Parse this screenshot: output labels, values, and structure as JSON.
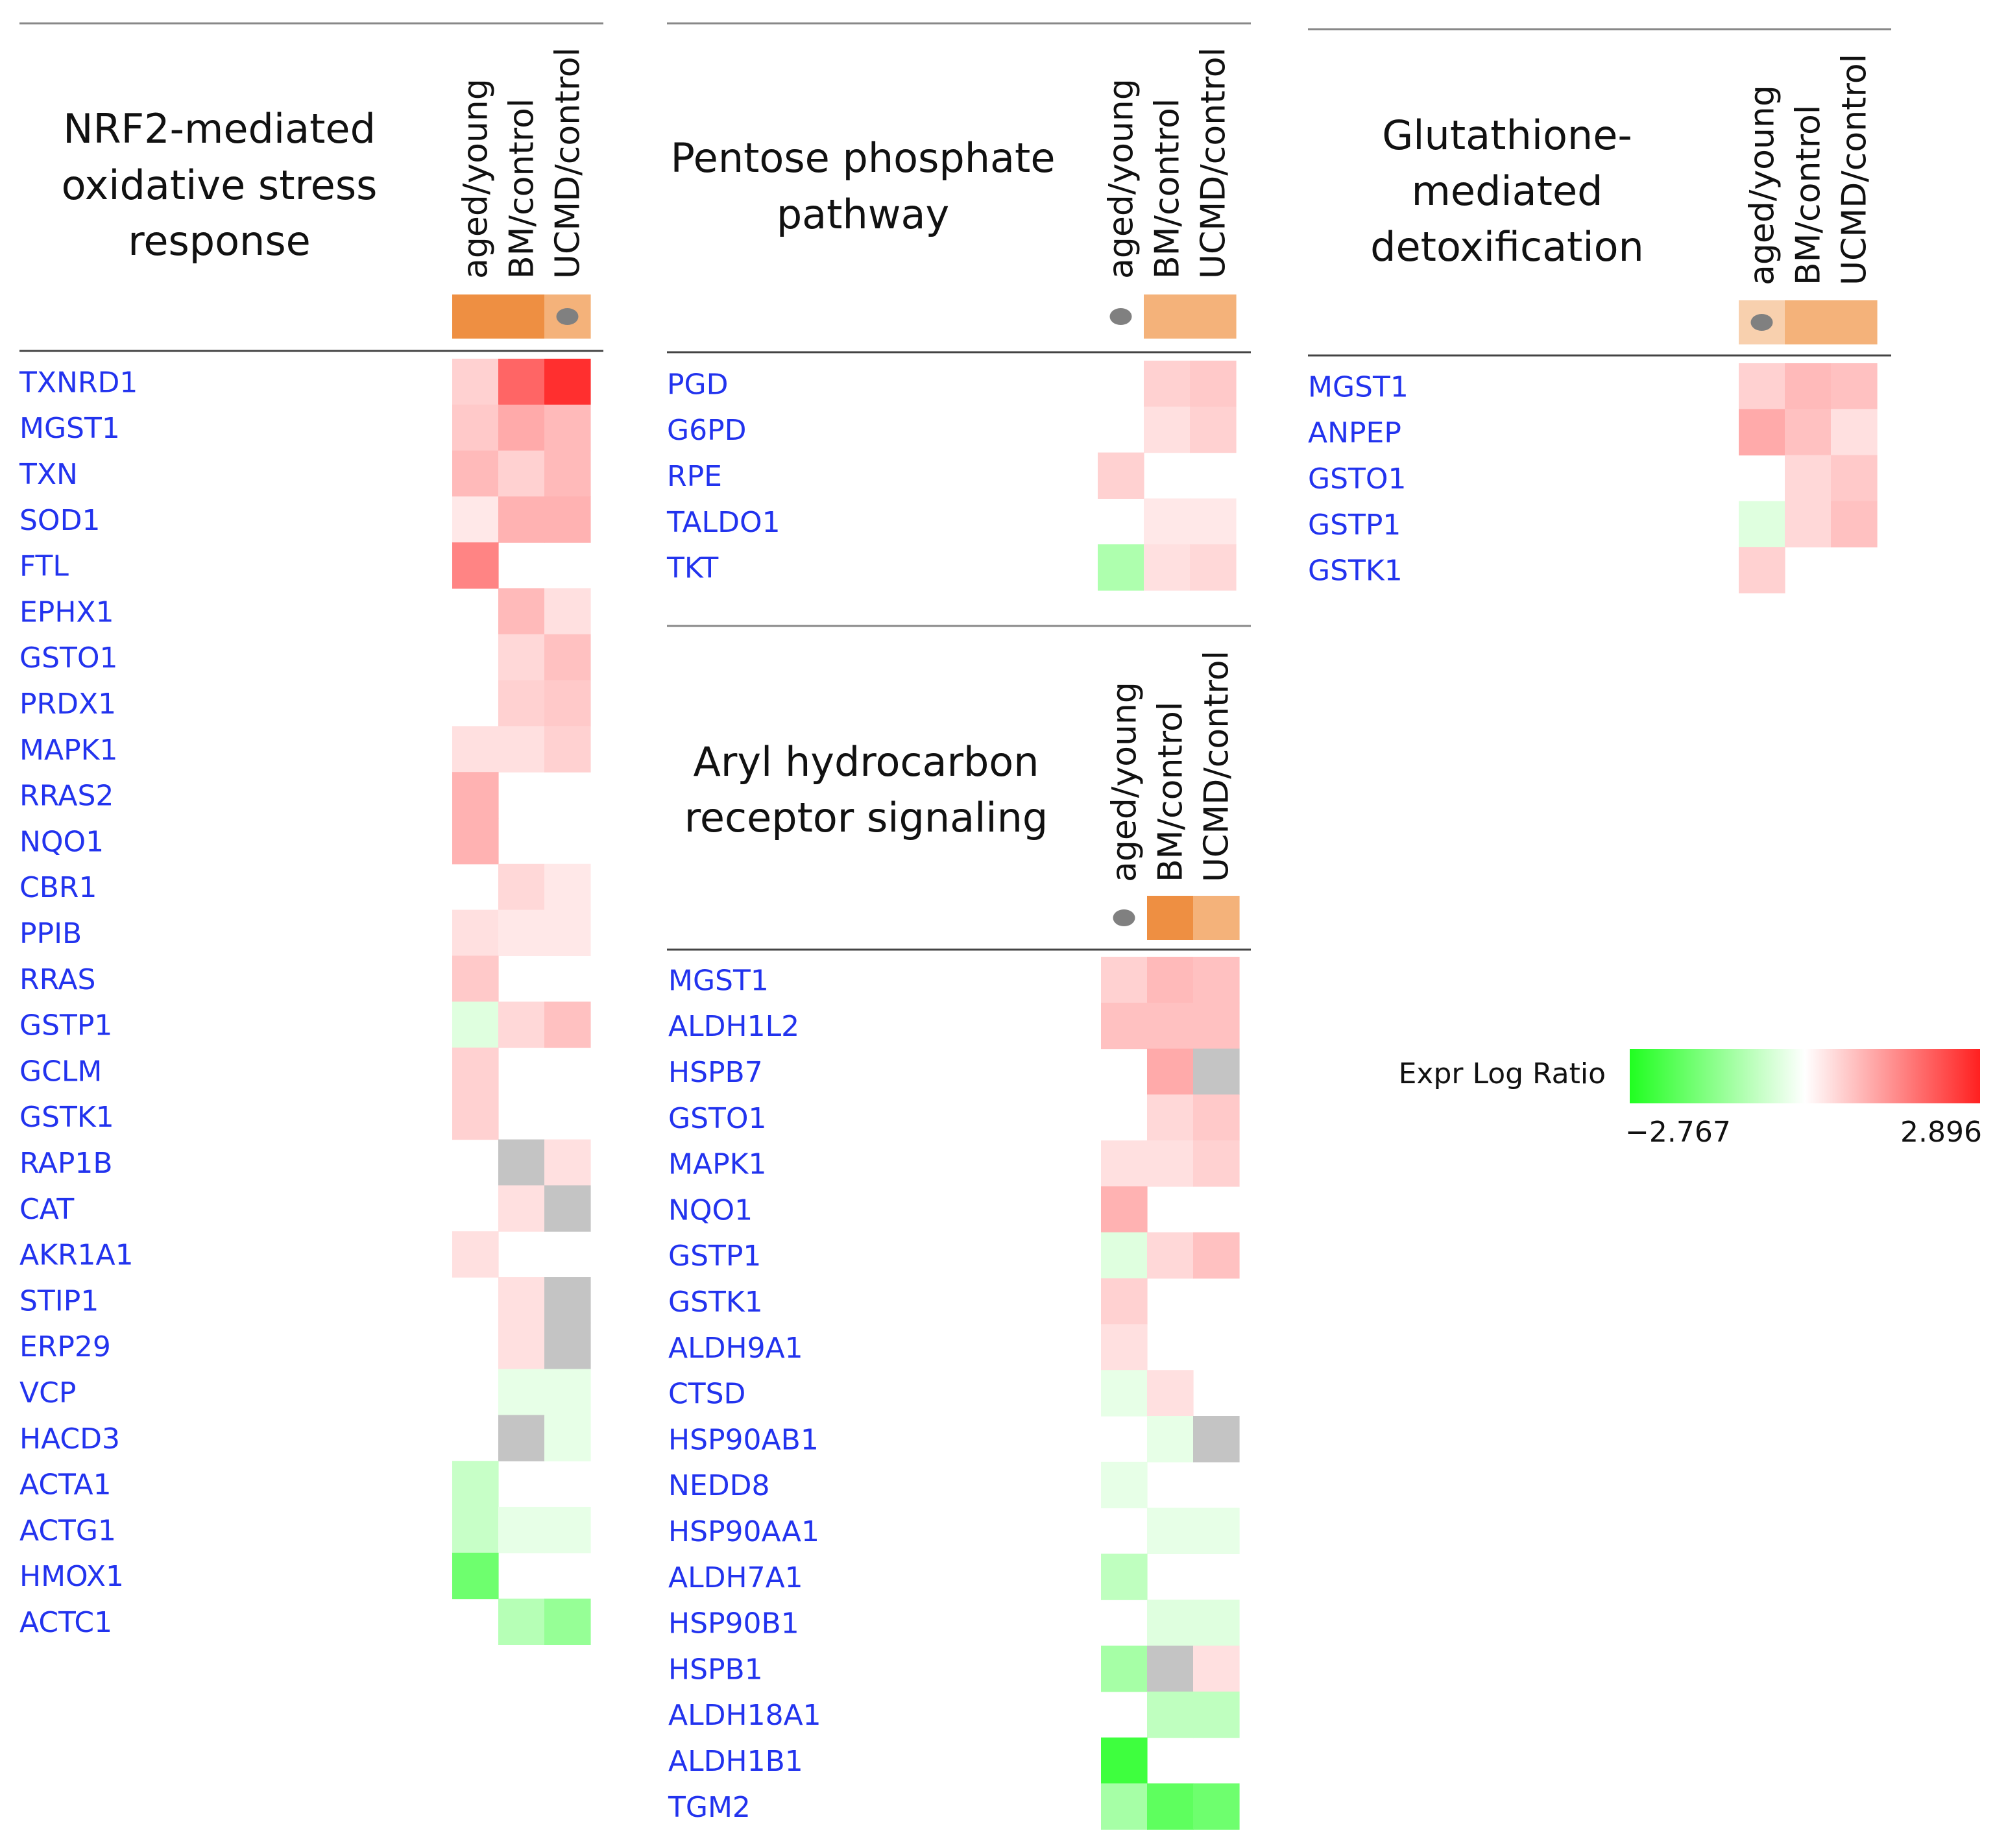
{
  "chart_data": {
    "type": "heatmap",
    "columns": [
      "aged/young",
      "BM/control",
      "UCMD/control"
    ],
    "legend": {
      "title": "Expr Log Ratio",
      "min": -2.767,
      "max": 2.896,
      "min_label": "−2.767",
      "max_label": "2.896"
    },
    "colors": {
      "high": "#ff2020",
      "low": "#20ff20",
      "mid": "#ffffff",
      "na": "#c4c4c4",
      "bar_dark": "#ee8f42",
      "bar_light": "#f4b27a",
      "bar_pale": "#f8d0ae",
      "dot": "#808080",
      "gene_text": "#2233ee",
      "rule": "#888888"
    },
    "panels": [
      {
        "title_lines": [
          "NRF2-mediated",
          "oxidative stress",
          "response"
        ],
        "significance": [
          "dark",
          "dark",
          "light-dot"
        ],
        "rows": [
          {
            "gene": "TXNRD1",
            "values": [
              0.6,
              2.0,
              2.7
            ]
          },
          {
            "gene": "MGST1",
            "values": [
              0.7,
              1.1,
              0.9
            ]
          },
          {
            "gene": "TXN",
            "values": [
              0.9,
              0.6,
              0.9
            ]
          },
          {
            "gene": "SOD1",
            "values": [
              0.3,
              1.0,
              1.0
            ]
          },
          {
            "gene": "FTL",
            "values": [
              1.6,
              null,
              null
            ]
          },
          {
            "gene": "EPHX1",
            "values": [
              null,
              0.9,
              0.4
            ]
          },
          {
            "gene": "GSTO1",
            "values": [
              null,
              0.5,
              0.8
            ]
          },
          {
            "gene": "PRDX1",
            "values": [
              null,
              0.6,
              0.7
            ]
          },
          {
            "gene": "MAPK1",
            "values": [
              0.4,
              0.4,
              0.6
            ]
          },
          {
            "gene": "RRAS2",
            "values": [
              1.0,
              null,
              null
            ]
          },
          {
            "gene": "NQO1",
            "values": [
              1.0,
              null,
              null
            ]
          },
          {
            "gene": "CBR1",
            "values": [
              null,
              0.5,
              0.3
            ]
          },
          {
            "gene": "PPIB",
            "values": [
              0.4,
              0.3,
              0.3
            ]
          },
          {
            "gene": "RRAS",
            "values": [
              0.7,
              null,
              null
            ]
          },
          {
            "gene": "GSTP1",
            "values": [
              -0.4,
              0.5,
              0.8
            ]
          },
          {
            "gene": "GCLM",
            "values": [
              0.6,
              null,
              null
            ]
          },
          {
            "gene": "GSTK1",
            "values": [
              0.6,
              null,
              null
            ]
          },
          {
            "gene": "RAP1B",
            "values": [
              null,
              "NA",
              0.4
            ]
          },
          {
            "gene": "CAT",
            "values": [
              null,
              0.4,
              "NA"
            ]
          },
          {
            "gene": "AKR1A1",
            "values": [
              0.4,
              null,
              null
            ]
          },
          {
            "gene": "STIP1",
            "values": [
              null,
              0.4,
              "NA"
            ]
          },
          {
            "gene": "ERP29",
            "values": [
              null,
              0.4,
              "NA"
            ]
          },
          {
            "gene": "VCP",
            "values": [
              null,
              -0.3,
              -0.3
            ]
          },
          {
            "gene": "HACD3",
            "values": [
              null,
              "NA",
              -0.3
            ]
          },
          {
            "gene": "ACTA1",
            "values": [
              -0.7,
              null,
              null
            ]
          },
          {
            "gene": "ACTG1",
            "values": [
              -0.7,
              -0.3,
              -0.3
            ]
          },
          {
            "gene": "HMOX1",
            "values": [
              -1.8,
              null,
              null
            ]
          },
          {
            "gene": "ACTC1",
            "values": [
              null,
              -0.9,
              -1.3
            ]
          }
        ]
      },
      {
        "title_lines": [
          "Pentose phosphate",
          "pathway"
        ],
        "significance": [
          "dot",
          "light",
          "light"
        ],
        "rows": [
          {
            "gene": "PGD",
            "values": [
              null,
              0.6,
              0.7
            ]
          },
          {
            "gene": "G6PD",
            "values": [
              null,
              0.4,
              0.6
            ]
          },
          {
            "gene": "RPE",
            "values": [
              0.6,
              null,
              null
            ]
          },
          {
            "gene": "TALDO1",
            "values": [
              null,
              0.3,
              0.3
            ]
          },
          {
            "gene": "TKT",
            "values": [
              -1.0,
              0.4,
              0.5
            ]
          }
        ]
      },
      {
        "title_lines": [
          "Aryl hydrocarbon",
          "receptor signaling"
        ],
        "significance": [
          "dot",
          "dark",
          "light"
        ],
        "rows": [
          {
            "gene": "MGST1",
            "values": [
              0.6,
              0.9,
              0.8
            ]
          },
          {
            "gene": "ALDH1L2",
            "values": [
              0.8,
              0.8,
              0.8
            ]
          },
          {
            "gene": "HSPB7",
            "values": [
              null,
              1.1,
              "NA"
            ]
          },
          {
            "gene": "GSTO1",
            "values": [
              null,
              0.5,
              0.7
            ]
          },
          {
            "gene": "MAPK1",
            "values": [
              0.4,
              0.4,
              0.6
            ]
          },
          {
            "gene": "NQO1",
            "values": [
              1.0,
              null,
              null
            ]
          },
          {
            "gene": "GSTP1",
            "values": [
              -0.4,
              0.5,
              0.8
            ]
          },
          {
            "gene": "GSTK1",
            "values": [
              0.6,
              null,
              null
            ]
          },
          {
            "gene": "ALDH9A1",
            "values": [
              0.4,
              null,
              null
            ]
          },
          {
            "gene": "CTSD",
            "values": [
              -0.3,
              0.4,
              null
            ]
          },
          {
            "gene": "HSP90AB1",
            "values": [
              null,
              -0.3,
              "NA"
            ]
          },
          {
            "gene": "NEDD8",
            "values": [
              -0.3,
              null,
              null
            ]
          },
          {
            "gene": "HSP90AA1",
            "values": [
              null,
              -0.3,
              -0.3
            ]
          },
          {
            "gene": "ALDH7A1",
            "values": [
              -0.8,
              null,
              null
            ]
          },
          {
            "gene": "HSP90B1",
            "values": [
              null,
              -0.4,
              -0.4
            ]
          },
          {
            "gene": "HSPB1",
            "values": [
              -1.1,
              "NA",
              0.4
            ]
          },
          {
            "gene": "ALDH18A1",
            "values": [
              null,
              -0.8,
              -0.8
            ]
          },
          {
            "gene": "ALDH1B1",
            "values": [
              -2.4,
              null,
              null
            ]
          },
          {
            "gene": "TGM2",
            "values": [
              -1.1,
              -2.0,
              -1.8
            ]
          }
        ]
      },
      {
        "title_lines": [
          "Glutathione-",
          "mediated",
          "detoxification"
        ],
        "significance": [
          "pale-dot",
          "light",
          "light"
        ],
        "rows": [
          {
            "gene": "MGST1",
            "values": [
              0.6,
              0.9,
              0.8
            ]
          },
          {
            "gene": "ANPEP",
            "values": [
              1.1,
              0.8,
              0.4
            ]
          },
          {
            "gene": "GSTO1",
            "values": [
              null,
              0.5,
              0.7
            ]
          },
          {
            "gene": "GSTP1",
            "values": [
              -0.4,
              0.5,
              0.8
            ]
          },
          {
            "gene": "GSTK1",
            "values": [
              0.6,
              null,
              null
            ]
          }
        ]
      }
    ]
  }
}
